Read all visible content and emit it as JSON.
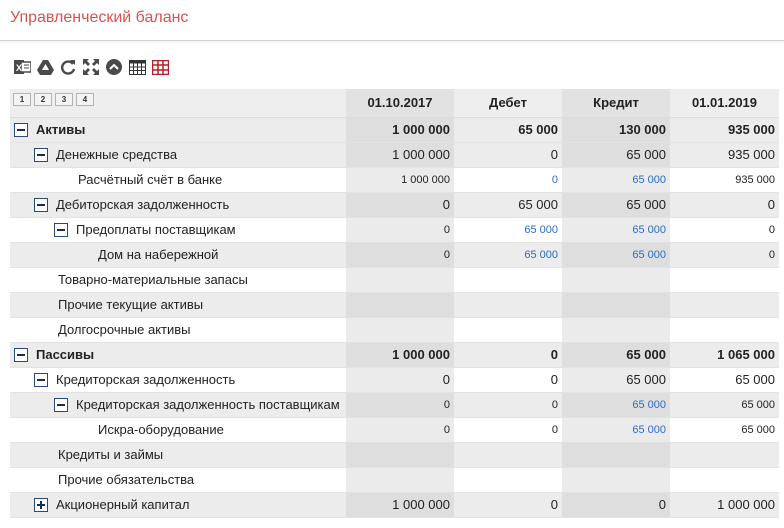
{
  "page": {
    "title": "Управленческий баланс"
  },
  "toolbar": {
    "icons": [
      "excel-icon",
      "google-drive-icon",
      "refresh-icon",
      "fullscreen-icon",
      "collapse-up-icon",
      "table-icon",
      "table-red-icon"
    ]
  },
  "levels": [
    "1",
    "2",
    "3",
    "4"
  ],
  "columns": [
    "01.10.2017",
    "Дебет",
    "Кредит",
    "01.01.2019"
  ],
  "rows": [
    {
      "label": "Активы",
      "values": [
        "1 000 000",
        "65 000",
        "130 000",
        "935 000"
      ]
    },
    {
      "label": "Денежные средства",
      "values": [
        "1 000 000",
        "0",
        "65 000",
        "935 000"
      ]
    },
    {
      "label": "Расчётный счёт в банке",
      "values": [
        "1 000 000",
        "0",
        "65 000",
        "935 000"
      ]
    },
    {
      "label": "Дебиторская задолженность",
      "values": [
        "0",
        "65 000",
        "65 000",
        "0"
      ]
    },
    {
      "label": "Предоплаты поставщикам",
      "values": [
        "0",
        "65 000",
        "65 000",
        "0"
      ]
    },
    {
      "label": "Дом на набережной",
      "values": [
        "0",
        "65 000",
        "65 000",
        "0"
      ]
    },
    {
      "label": "Товарно-материальные запасы",
      "values": [
        "",
        "",
        "",
        ""
      ]
    },
    {
      "label": "Прочие текущие активы",
      "values": [
        "",
        "",
        "",
        ""
      ]
    },
    {
      "label": "Долгосрочные активы",
      "values": [
        "",
        "",
        "",
        ""
      ]
    },
    {
      "label": "Пассивы",
      "values": [
        "1 000 000",
        "0",
        "65 000",
        "1 065 000"
      ]
    },
    {
      "label": "Кредиторская задолженность",
      "values": [
        "0",
        "0",
        "65 000",
        "65 000"
      ]
    },
    {
      "label": "Кредиторская задолженность поставщикам",
      "values": [
        "0",
        "0",
        "65 000",
        "65 000"
      ]
    },
    {
      "label": "Искра-оборудование",
      "values": [
        "0",
        "0",
        "65 000",
        "65 000"
      ]
    },
    {
      "label": "Кредиты и займы",
      "values": [
        "",
        "",
        "",
        ""
      ]
    },
    {
      "label": "Прочие обязательства",
      "values": [
        "",
        "",
        "",
        ""
      ]
    },
    {
      "label": "Акционерный капитал",
      "values": [
        "1 000 000",
        "0",
        "0",
        "1 000 000"
      ]
    }
  ]
}
